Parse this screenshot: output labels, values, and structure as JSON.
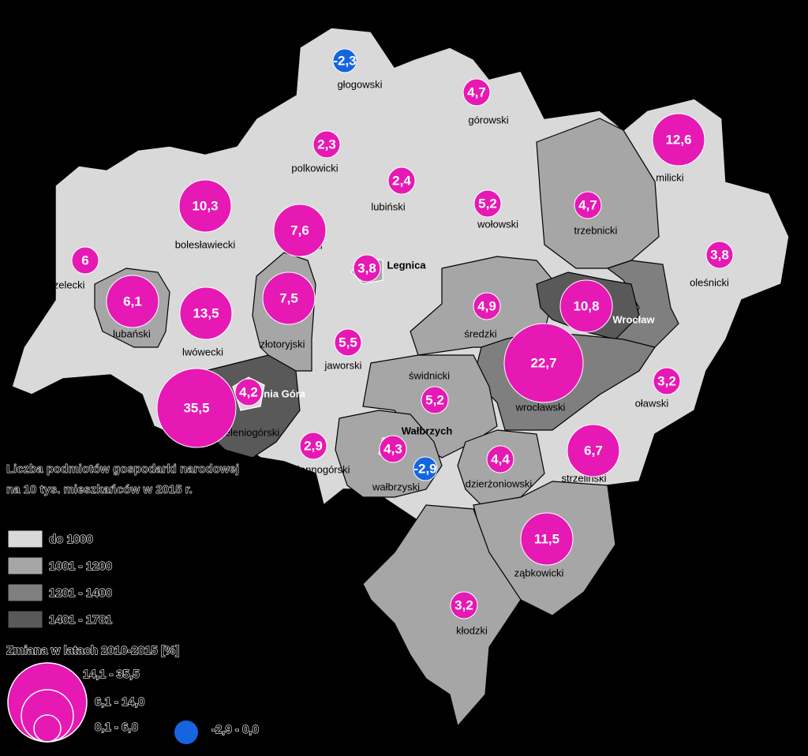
{
  "map": {
    "districts": [
      {
        "name": "głogowski",
        "value": -2.3,
        "value_label": "-2,3"
      },
      {
        "name": "górowski",
        "value": 4.7,
        "value_label": "4,7"
      },
      {
        "name": "polkowicki",
        "value": 2.3,
        "value_label": "2,3"
      },
      {
        "name": "milicki",
        "value": 12.6,
        "value_label": "12,6"
      },
      {
        "name": "lubiński",
        "value": 2.4,
        "value_label": "2,4"
      },
      {
        "name": "bolesławiecki",
        "value": 10.3,
        "value_label": "10,3"
      },
      {
        "name": "wołowski",
        "value": 5.2,
        "value_label": "5,2"
      },
      {
        "name": "trzebnicki",
        "value": 4.7,
        "value_label": "4,7"
      },
      {
        "name": "legnicki",
        "value": 7.6,
        "value_label": "7,6"
      },
      {
        "name": "zgorzelecki",
        "value": 6,
        "value_label": "6"
      },
      {
        "name": "Legnica",
        "value": 3.8,
        "value_label": "3,8"
      },
      {
        "name": "oleśnicki",
        "value": 3.8,
        "value_label": "3,8"
      },
      {
        "name": "lubański",
        "value": 6.1,
        "value_label": "6,1"
      },
      {
        "name": "lwówecki",
        "value": 13.5,
        "value_label": "13,5"
      },
      {
        "name": "złotoryjski",
        "value": 7.5,
        "value_label": "7,5"
      },
      {
        "name": "średzki",
        "value": 4.9,
        "value_label": "4,9"
      },
      {
        "name": "Wrocław",
        "value": 10.8,
        "value_label": "10,8"
      },
      {
        "name": "jaworski",
        "value": 5.5,
        "value_label": "5,5"
      },
      {
        "name": "wrocławski",
        "value": 22.7,
        "value_label": "22,7"
      },
      {
        "name": "oławski",
        "value": 3.2,
        "value_label": "3,2"
      },
      {
        "name": "świdnicki",
        "value": 5.2,
        "value_label": "5,2"
      },
      {
        "name": "jeleniogórski",
        "value": 35.5,
        "value_label": "35,5"
      },
      {
        "name": "Jelenia Góra",
        "value": 4.2,
        "value_label": "4,2"
      },
      {
        "name": "kamiennogórski",
        "value": 2.9,
        "value_label": "2,9"
      },
      {
        "name": "Wałbrzych",
        "value": 4.3,
        "value_label": "4,3"
      },
      {
        "name": "wałbrzyski",
        "value": -2.9,
        "value_label": "-2,9"
      },
      {
        "name": "dzierżoniowski",
        "value": 4.4,
        "value_label": "4,4"
      },
      {
        "name": "strzeliński",
        "value": 6.7,
        "value_label": "6,7"
      },
      {
        "name": "ząbkowicki",
        "value": 11.5,
        "value_label": "11,5"
      },
      {
        "name": "kłodzki",
        "value": 3.2,
        "value_label": "3,2"
      }
    ],
    "legend": {
      "title": "Liczba podmiotów gospodarki narodowej na 10 tys. mieszkańców w 2015 r.",
      "classes": [
        {
          "label": "do 1000",
          "color": "#d9d9d9"
        },
        {
          "label": "1001 - 1200",
          "color": "#a6a6a6"
        },
        {
          "label": "1201 - 1400",
          "color": "#7f7f7f"
        },
        {
          "label": "1401 - 1781",
          "color": "#595959"
        }
      ],
      "change_title": "Zmiana w latach 2010-2015 [%]",
      "change_classes": [
        {
          "label": "14,1 - 35,5",
          "min": 14.1,
          "max": 35.5,
          "color": "#e619b4"
        },
        {
          "label": "6,1 - 14,0",
          "min": 6.1,
          "max": 14.0,
          "color": "#e619b4"
        },
        {
          "label": "0,1 - 6,0",
          "min": 0.1,
          "max": 6.0,
          "color": "#e619b4"
        },
        {
          "label": "-2,9 - 0,0",
          "min": -2.9,
          "max": 0.0,
          "color": "#1565e0"
        }
      ]
    }
  }
}
